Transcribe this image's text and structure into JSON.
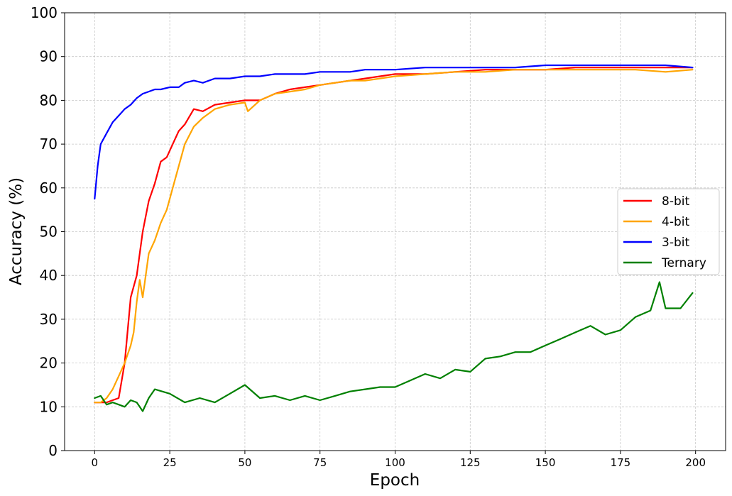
{
  "chart_data": {
    "type": "line",
    "title": "",
    "xlabel": "Epoch",
    "ylabel": "Accuracy (%)",
    "xlim": [
      -10,
      210
    ],
    "ylim": [
      0,
      100
    ],
    "xticks": [
      0,
      25,
      50,
      75,
      100,
      125,
      150,
      175,
      200
    ],
    "yticks": [
      0,
      10,
      20,
      30,
      40,
      50,
      60,
      70,
      80,
      90,
      100
    ],
    "grid": true,
    "legend_position": "center-right",
    "series": [
      {
        "name": "8-bit",
        "color": "#ff0000",
        "x": [
          0,
          2,
          4,
          6,
          8,
          10,
          12,
          14,
          16,
          18,
          20,
          22,
          24,
          26,
          28,
          30,
          33,
          36,
          40,
          45,
          50,
          55,
          60,
          65,
          70,
          75,
          80,
          85,
          90,
          95,
          100,
          110,
          120,
          130,
          140,
          150,
          160,
          170,
          180,
          190,
          199
        ],
        "y": [
          11,
          11,
          11,
          11.5,
          12,
          20,
          35,
          40,
          50,
          57,
          61,
          66,
          67,
          70,
          73,
          74.5,
          78,
          77.5,
          79,
          79.5,
          80,
          80,
          81.5,
          82.5,
          83,
          83.5,
          84,
          84.5,
          85,
          85.5,
          86,
          86,
          86.5,
          87,
          87,
          87,
          87.5,
          87.5,
          87.5,
          87.5,
          87.5
        ]
      },
      {
        "name": "4-bit",
        "color": "#ffa500",
        "x": [
          0,
          2,
          4,
          6,
          8,
          10,
          12,
          13,
          14,
          15,
          16,
          18,
          20,
          22,
          24,
          26,
          28,
          30,
          33,
          36,
          40,
          45,
          50,
          51,
          55,
          60,
          65,
          70,
          75,
          80,
          85,
          90,
          95,
          100,
          110,
          120,
          130,
          140,
          150,
          160,
          170,
          180,
          190,
          199
        ],
        "y": [
          11,
          11,
          12,
          14,
          17,
          20,
          24,
          27,
          34,
          39,
          35,
          45,
          48,
          52,
          55,
          60,
          65,
          70,
          74,
          76,
          78,
          79,
          79.5,
          77.5,
          80,
          81.5,
          82,
          82.5,
          83.5,
          84,
          84.5,
          84.5,
          85,
          85.5,
          86,
          86.5,
          86.5,
          87,
          87,
          87,
          87,
          87,
          86.5,
          87
        ]
      },
      {
        "name": "3-bit",
        "color": "#0000ff",
        "x": [
          0,
          1,
          2,
          4,
          6,
          8,
          10,
          12,
          14,
          16,
          18,
          20,
          22,
          25,
          28,
          30,
          33,
          36,
          40,
          45,
          50,
          55,
          60,
          65,
          70,
          75,
          80,
          85,
          90,
          95,
          100,
          110,
          120,
          130,
          140,
          150,
          160,
          170,
          180,
          190,
          199
        ],
        "y": [
          57.5,
          65,
          70,
          72.5,
          75,
          76.5,
          78,
          79,
          80.5,
          81.5,
          82,
          82.5,
          82.5,
          83,
          83,
          84,
          84.5,
          84,
          85,
          85,
          85.5,
          85.5,
          86,
          86,
          86,
          86.5,
          86.5,
          86.5,
          87,
          87,
          87,
          87.5,
          87.5,
          87.5,
          87.5,
          88,
          88,
          88,
          88,
          88,
          87.5
        ]
      },
      {
        "name": "Ternary",
        "color": "#008000",
        "x": [
          0,
          2,
          4,
          6,
          8,
          10,
          12,
          14,
          16,
          18,
          20,
          25,
          30,
          35,
          40,
          45,
          50,
          55,
          60,
          65,
          70,
          75,
          80,
          85,
          90,
          95,
          100,
          105,
          110,
          115,
          120,
          125,
          130,
          135,
          140,
          145,
          150,
          155,
          160,
          165,
          170,
          175,
          180,
          185,
          188,
          190,
          195,
          199
        ],
        "y": [
          12,
          12.5,
          10.5,
          11,
          10.5,
          10,
          11.5,
          11,
          9,
          12,
          14,
          13,
          11,
          12,
          11,
          13,
          15,
          12,
          12.5,
          11.5,
          12.5,
          11.5,
          12.5,
          13.5,
          14,
          14.5,
          14.5,
          16,
          17.5,
          16.5,
          18.5,
          18,
          21,
          21.5,
          22.5,
          22.5,
          24,
          25.5,
          27,
          28.5,
          26.5,
          27.5,
          30.5,
          32,
          38.5,
          32.5,
          32.5,
          36
        ]
      }
    ]
  }
}
